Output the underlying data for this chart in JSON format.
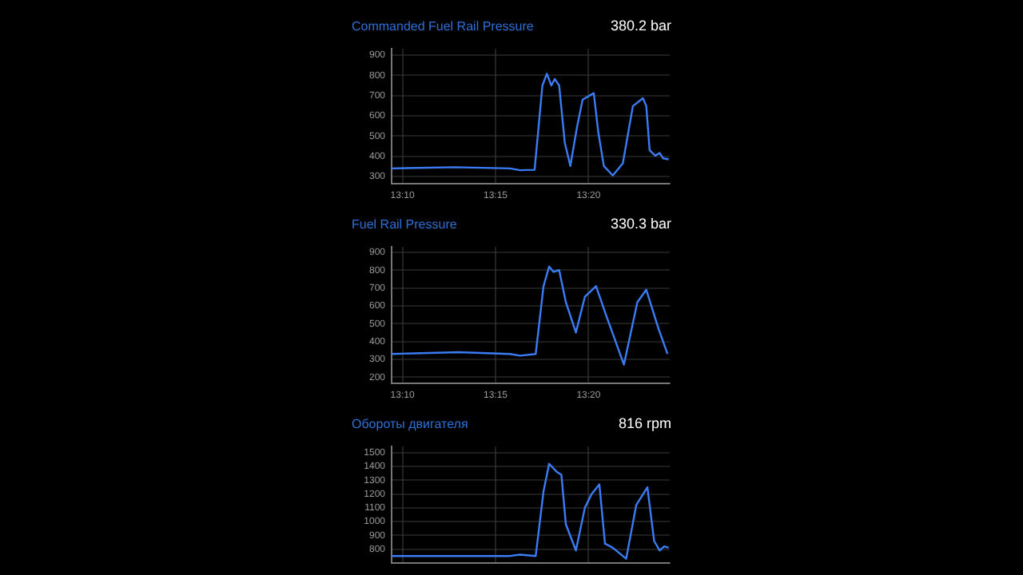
{
  "chart_data": [
    {
      "type": "line",
      "title": "Commanded Fuel Rail Pressure",
      "subtitle": "380.2 bar",
      "grid": true,
      "marker": "none",
      "legend": false,
      "xlim": [
        13.157,
        13.406
      ],
      "xticks": [
        {
          "value": 13.1667,
          "label": "13:10"
        },
        {
          "value": 13.25,
          "label": "13:15"
        },
        {
          "value": 13.3333,
          "label": "13:20"
        }
      ],
      "ylim": [
        266,
        931
      ],
      "yticks": [
        300,
        400,
        500,
        600,
        700,
        800,
        900
      ],
      "series": [
        {
          "color": "#3b7cf5",
          "x": [
            13.157,
            13.213,
            13.263,
            13.272,
            13.285,
            13.292,
            13.296,
            13.3,
            13.303,
            13.307,
            13.312,
            13.317,
            13.323,
            13.328,
            13.338,
            13.342,
            13.347,
            13.355,
            13.364,
            13.373,
            13.382,
            13.385,
            13.388,
            13.393,
            13.397,
            13.4,
            13.405
          ],
          "values": [
            340,
            346,
            340,
            331,
            333,
            750,
            808,
            750,
            782,
            750,
            468,
            352,
            545,
            680,
            712,
            520,
            352,
            305,
            365,
            648,
            687,
            648,
            430,
            403,
            416,
            390,
            385
          ]
        }
      ]
    },
    {
      "type": "line",
      "title": "Fuel Rail Pressure",
      "subtitle": "330.3 bar",
      "grid": true,
      "marker": "none",
      "legend": false,
      "xlim": [
        13.157,
        13.406
      ],
      "xticks": [
        {
          "value": 13.1667,
          "label": "13:10"
        },
        {
          "value": 13.25,
          "label": "13:15"
        },
        {
          "value": 13.3333,
          "label": "13:20"
        }
      ],
      "ylim": [
        167,
        930
      ],
      "yticks": [
        200,
        300,
        400,
        500,
        600,
        700,
        800,
        900
      ],
      "series": [
        {
          "color": "#3b7cf5",
          "x": [
            13.157,
            13.217,
            13.263,
            13.272,
            13.286,
            13.293,
            13.298,
            13.302,
            13.307,
            13.313,
            13.322,
            13.33,
            13.34,
            13.35,
            13.365,
            13.377,
            13.385,
            13.396,
            13.404
          ],
          "values": [
            330,
            340,
            330,
            320,
            330,
            710,
            820,
            790,
            800,
            620,
            450,
            650,
            710,
            530,
            270,
            620,
            690,
            470,
            330
          ]
        }
      ]
    },
    {
      "type": "line",
      "title": "Обороты двигателя",
      "subtitle": "816 rpm",
      "grid": true,
      "marker": "none",
      "legend": false,
      "tick_labels": "y",
      "xlim": [
        13.157,
        13.406
      ],
      "xticks": [
        {
          "value": 13.1667,
          "label": null
        },
        {
          "value": 13.25,
          "label": null
        },
        {
          "value": 13.3333,
          "label": null
        }
      ],
      "ylim": [
        700,
        1545
      ],
      "yticks": [
        800,
        900,
        1000,
        1100,
        1200,
        1300,
        1400,
        1500
      ],
      "series": [
        {
          "color": "#3b7cf5",
          "x": [
            13.157,
            13.263,
            13.272,
            13.286,
            13.293,
            13.298,
            13.305,
            13.309,
            13.313,
            13.322,
            13.33,
            13.336,
            13.343,
            13.348,
            13.355,
            13.367,
            13.376,
            13.386,
            13.392,
            13.397,
            13.401,
            13.405
          ],
          "values": [
            750,
            750,
            760,
            750,
            1220,
            1420,
            1360,
            1340,
            980,
            790,
            1100,
            1200,
            1270,
            840,
            810,
            730,
            1120,
            1250,
            860,
            790,
            820,
            810
          ]
        }
      ]
    }
  ]
}
